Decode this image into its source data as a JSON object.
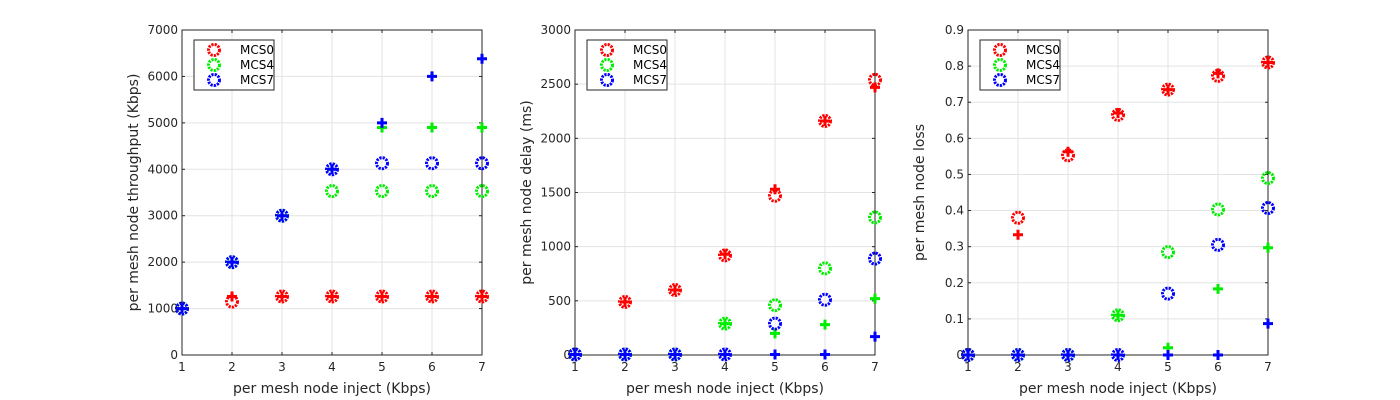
{
  "chart_data": [
    {
      "type": "scatter",
      "xlabel": "per mesh node inject (Kbps)",
      "ylabel": "per mesh node throughput (Kbps)",
      "xlim": [
        1,
        7
      ],
      "ylim": [
        0,
        7000
      ],
      "xticks": [
        1,
        2,
        3,
        4,
        5,
        6,
        7
      ],
      "yticks": [
        0,
        1000,
        2000,
        3000,
        4000,
        5000,
        6000,
        7000
      ],
      "grid": true,
      "legend": "top-left",
      "x": [
        1,
        2,
        3,
        4,
        5,
        6,
        7
      ],
      "series": [
        {
          "name": "MCS0",
          "color": "#ff0000",
          "circle": [
            1000,
            1150,
            1260,
            1260,
            1260,
            1260,
            1260
          ],
          "plus": [
            1000,
            1260,
            1260,
            1260,
            1260,
            1260,
            1260
          ]
        },
        {
          "name": "MCS4",
          "color": "#00ee00",
          "circle": [
            1000,
            2000,
            3000,
            3530,
            3530,
            3530,
            3530
          ],
          "plus": [
            1000,
            2000,
            3000,
            4000,
            4900,
            4900,
            4900
          ]
        },
        {
          "name": "MCS7",
          "color": "#0000ff",
          "circle": [
            1000,
            2000,
            3000,
            4000,
            4130,
            4130,
            4130
          ],
          "plus": [
            1000,
            2000,
            3000,
            4000,
            5000,
            6000,
            6380
          ]
        }
      ]
    },
    {
      "type": "scatter",
      "xlabel": "per mesh node inject (Kbps)",
      "ylabel": "per mesh node delay (ms)",
      "xlim": [
        1,
        7
      ],
      "ylim": [
        0,
        3000
      ],
      "xticks": [
        1,
        2,
        3,
        4,
        5,
        6,
        7
      ],
      "yticks": [
        0,
        500,
        1000,
        1500,
        2000,
        2500,
        3000
      ],
      "grid": true,
      "legend": "top-left",
      "x": [
        1,
        2,
        3,
        4,
        5,
        6,
        7
      ],
      "series": [
        {
          "name": "MCS0",
          "color": "#ff0000",
          "circle": [
            5,
            490,
            600,
            920,
            1470,
            2160,
            2540
          ],
          "plus": [
            5,
            490,
            600,
            930,
            1530,
            2160,
            2470
          ]
        },
        {
          "name": "MCS4",
          "color": "#00ee00",
          "circle": [
            5,
            5,
            5,
            290,
            460,
            800,
            1270
          ],
          "plus": [
            5,
            5,
            5,
            290,
            200,
            280,
            520
          ]
        },
        {
          "name": "MCS7",
          "color": "#0000ff",
          "circle": [
            5,
            5,
            5,
            5,
            290,
            510,
            890
          ],
          "plus": [
            5,
            5,
            5,
            5,
            5,
            5,
            170
          ]
        }
      ]
    },
    {
      "type": "scatter",
      "xlabel": "per mesh node inject (Kbps)",
      "ylabel": "per mesh node loss",
      "xlim": [
        1,
        7
      ],
      "ylim": [
        0,
        0.9
      ],
      "xticks": [
        1,
        2,
        3,
        4,
        5,
        6,
        7
      ],
      "yticks": [
        0,
        0.1,
        0.2,
        0.3,
        0.4,
        0.5,
        0.6,
        0.7,
        0.8,
        0.9
      ],
      "grid": true,
      "legend": "top-left",
      "x": [
        1,
        2,
        3,
        4,
        5,
        6,
        7
      ],
      "series": [
        {
          "name": "MCS0",
          "color": "#ff0000",
          "circle": [
            0,
            0.38,
            0.553,
            0.665,
            0.735,
            0.773,
            0.81
          ],
          "plus": [
            0,
            0.333,
            0.563,
            0.67,
            0.735,
            0.78,
            0.81
          ]
        },
        {
          "name": "MCS4",
          "color": "#00ee00",
          "circle": [
            0,
            0,
            0,
            0.11,
            0.285,
            0.403,
            0.49
          ],
          "plus": [
            0,
            0,
            0,
            0.11,
            0.02,
            0.183,
            0.297
          ]
        },
        {
          "name": "MCS7",
          "color": "#0000ff",
          "circle": [
            0,
            0,
            0,
            0,
            0.17,
            0.305,
            0.407
          ],
          "plus": [
            0,
            0,
            0,
            0,
            0,
            0,
            0.087
          ]
        }
      ]
    }
  ]
}
